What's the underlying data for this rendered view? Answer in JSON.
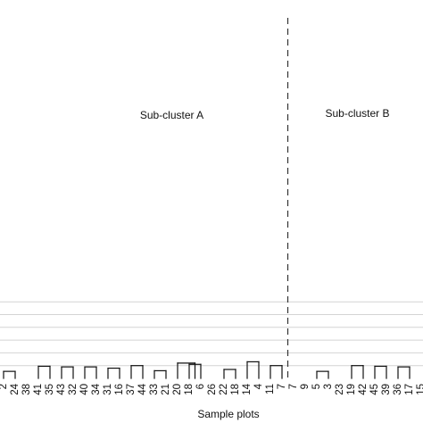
{
  "chart_data": {
    "type": "dendrogram",
    "title": "",
    "xlabel": "Sample plots",
    "ylabel": "",
    "grid": true,
    "leaf_labels_visible": [
      "2",
      "24",
      "38",
      "41",
      "35",
      "43",
      "32",
      "40",
      "34",
      "31",
      "16",
      "37",
      "44",
      "33",
      "21",
      "20",
      "18",
      "6",
      "26",
      "22",
      "18",
      "14",
      "4",
      "11",
      "7",
      "7",
      "9",
      "5",
      "3",
      "23",
      "19",
      "42",
      "45",
      "39",
      "36",
      "17",
      "15"
    ],
    "annotations": [
      "Sub-cluster A",
      "Sub-cluster B"
    ],
    "divider": "dashed vertical line separating sub-cluster A (left) from sub-cluster B (right)",
    "grid_levels": [
      1,
      2,
      3,
      4,
      5,
      6
    ],
    "dendrogram_links": [
      {
        "left": 0,
        "right": 1,
        "height": 0.55
      },
      {
        "left": 3,
        "right": 4,
        "height": 0.95
      },
      {
        "left": 5,
        "right": 6,
        "height": 0.9
      },
      {
        "left": 7,
        "right": 8,
        "height": 0.9
      },
      {
        "left": 9,
        "right": 10,
        "height": 0.8
      },
      {
        "left": 11,
        "right": 12,
        "height": 1.0
      },
      {
        "left": 13,
        "right": 14,
        "height": 0.6
      },
      {
        "left": 16,
        "right": 17,
        "height": 1.1
      },
      {
        "left": 15,
        "right": 16.5,
        "height": 1.2
      },
      {
        "left": 19,
        "right": 20,
        "height": 0.7
      },
      {
        "left": 21,
        "right": 22,
        "height": 1.3
      },
      {
        "left": 23,
        "right": 24,
        "height": 1.0
      },
      {
        "left": 27,
        "right": 28,
        "height": 0.55
      },
      {
        "left": 30,
        "right": 31,
        "height": 1.0
      },
      {
        "left": 32,
        "right": 33,
        "height": 0.95
      },
      {
        "left": 34,
        "right": 35,
        "height": 0.9
      }
    ]
  }
}
